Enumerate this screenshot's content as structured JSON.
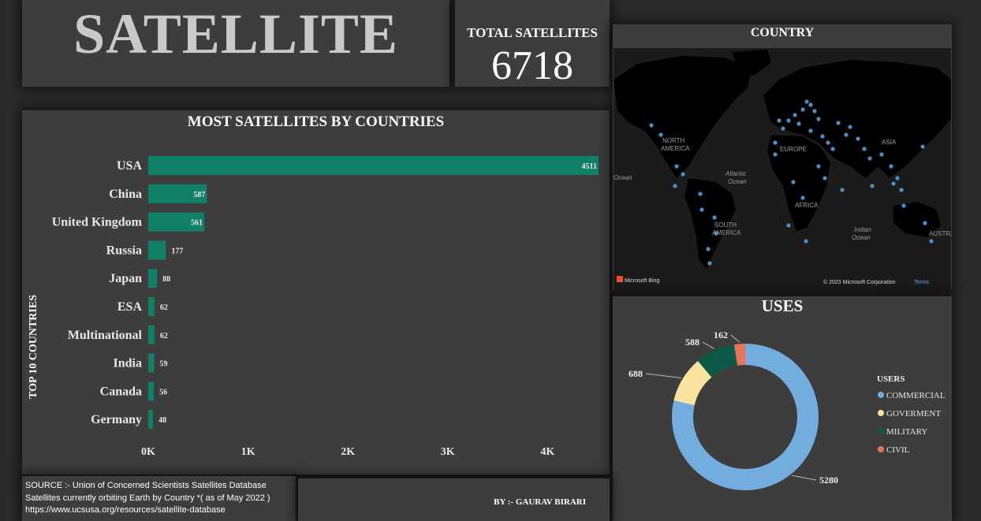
{
  "title": "SATELLITE",
  "kpi": {
    "label": "TOTAL SATELLITES",
    "value": "6718"
  },
  "map": {
    "title": "COUNTRY",
    "labels": [
      "NORTH",
      "AMERICA",
      "SOUTH",
      "AMERICA",
      "Atlantic",
      "Ocean",
      "EUROPE",
      "AFRICA",
      "ASIA",
      "Indian",
      "Ocean",
      "AUSTRALIA",
      "Ocean"
    ],
    "credit_left": "Microsoft Bing",
    "credit_right": "© 2023 Microsoft Corporation",
    "terms": "Terms",
    "colors": {
      "water": "#1b1b1b",
      "land": "#000000",
      "dot": "#4a90c8"
    }
  },
  "uses": {
    "title": "USES",
    "legend_title": "USERS"
  },
  "footer": {
    "source_line1": "SOURCE :- Union of Concerned Scientists Satellites Database",
    "source_line2": "Satellites currently orbiting Earth by Country *( as of May 2022 )",
    "source_line3": "https://www.ucsusa.org/resources/satellite-database",
    "credit": "BY :- GAURAV BIRARI"
  },
  "chart_data": [
    {
      "type": "bar",
      "title": "MOST SATELLITES BY COUNTRIES",
      "ylabel": "TOP 10 COUNTRIES",
      "orientation": "horizontal",
      "categories": [
        "USA",
        "China",
        "United Kingdom",
        "Russia",
        "Japan",
        "ESA",
        "Multinational",
        "India",
        "Canada",
        "Germany"
      ],
      "values": [
        4511,
        587,
        561,
        177,
        88,
        62,
        62,
        59,
        56,
        48
      ],
      "xlim": [
        0,
        4511
      ],
      "xticks": [
        "0K",
        "1K",
        "2K",
        "3K",
        "4K"
      ],
      "bar_color": "#118068"
    },
    {
      "type": "pie",
      "subtype": "donut",
      "title": "USES",
      "legend_title": "USERS",
      "legend_position": "right",
      "categories": [
        "COMMERCIAL",
        "GOVERMENT",
        "MILITARY",
        "CIVIL"
      ],
      "values": [
        5280,
        688,
        588,
        162
      ],
      "colors": [
        "#73ade0",
        "#fce29f",
        "#0d5a48",
        "#e8735a"
      ]
    }
  ]
}
